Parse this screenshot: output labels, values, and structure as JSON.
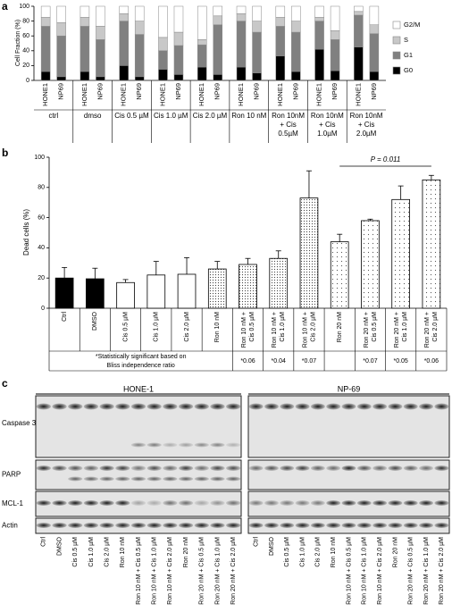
{
  "chart_data": [
    {
      "type": "stacked-bar",
      "panel": "a",
      "y_label": "Cell Fraction (%)",
      "categories": [
        "HONE1",
        "NP69",
        "HONE1",
        "NP69",
        "HONE1",
        "NP69",
        "HONE1",
        "NP69",
        "HONE1",
        "NP69",
        "HONE1",
        "NP69",
        "HONE1",
        "NP69",
        "HONE1",
        "NP69",
        "HONE1",
        "NP69"
      ],
      "groups": [
        [
          "ctrl"
        ],
        [
          "dmso"
        ],
        [
          "Cis 0.5 µM"
        ],
        [
          "Cis 1.0 µM"
        ],
        [
          "Cis 2.0 µM"
        ],
        [
          "Ron 10 nM"
        ],
        [
          "Ron 10nM",
          "+ Cis",
          "0.5µM"
        ],
        [
          "Ron 10nM",
          "+ Cis",
          "1.0µM"
        ],
        [
          "Ron 10nM",
          "+ Cis",
          "2.0µM"
        ]
      ],
      "series": [
        {
          "name": "G0",
          "color": "#000000",
          "values": [
            12,
            5,
            12,
            5,
            20,
            5,
            15,
            8,
            18,
            8,
            18,
            10,
            33,
            12,
            42,
            13,
            45,
            12
          ]
        },
        {
          "name": "G1",
          "color": "#808080",
          "values": [
            61,
            55,
            61,
            50,
            60,
            57,
            25,
            39,
            30,
            67,
            62,
            55,
            40,
            53,
            38,
            42,
            43,
            51
          ]
        },
        {
          "name": "S",
          "color": "#c8c8c8",
          "values": [
            12,
            18,
            12,
            18,
            10,
            18,
            18,
            18,
            7,
            12,
            10,
            15,
            12,
            15,
            5,
            12,
            5,
            12
          ]
        },
        {
          "name": "G2/M",
          "color": "#ffffff",
          "values": [
            15,
            22,
            15,
            27,
            10,
            20,
            42,
            35,
            45,
            13,
            10,
            20,
            15,
            20,
            15,
            33,
            7,
            25
          ]
        }
      ],
      "ylim": [
        0,
        100
      ],
      "yticks": [
        0,
        20,
        40,
        60,
        80,
        100
      ],
      "legend": "right"
    },
    {
      "type": "bar",
      "panel": "b",
      "y_label": "Dead cells (%)",
      "categories": [
        [
          "Ctrl"
        ],
        [
          "DMSO"
        ],
        [
          "Cis 0.5 µM"
        ],
        [
          "Cis 1.0 µM"
        ],
        [
          "Cis 2.0 µM"
        ],
        [
          "Ron 10 nM"
        ],
        [
          "Ron 10 nM +",
          "Cis 0.5 µM"
        ],
        [
          "Ron 10 nM +",
          "Cis 1.0 µM"
        ],
        [
          "Ron 10 nM +",
          "Cis 2.0 µM"
        ],
        [
          "Ron 20 nM"
        ],
        [
          "Ron 20 nM +",
          "Cis 0.5 µM"
        ],
        [
          "Ron 20 nM +",
          "Cis 1.0 µM"
        ],
        [
          "Ron 20 nM +",
          "Cis 2.0 µM"
        ]
      ],
      "values": [
        20,
        19.5,
        17,
        22,
        22.5,
        26,
        29,
        33,
        73,
        44,
        58,
        72,
        85
      ],
      "errors": [
        7,
        7,
        2,
        9,
        11,
        5,
        4,
        5,
        18,
        5,
        1,
        9,
        3
      ],
      "bar_styles": [
        "black",
        "black",
        "white",
        "white",
        "white",
        "dense-dots",
        "dense-dots",
        "dense-dots",
        "dense-dots",
        "sparse-dots",
        "sparse-dots",
        "sparse-dots",
        "sparse-dots"
      ],
      "note": [
        "*Statistically significant based on",
        "Bliss independence ratio"
      ],
      "bliss_labels": [
        null,
        null,
        null,
        null,
        null,
        null,
        "*0.06",
        "*0.04",
        "*0.07",
        null,
        "*0.07",
        "*0.05",
        "*0.06"
      ],
      "bracket_label": "P = 0.011",
      "ylim": [
        0,
        100
      ],
      "yticks": [
        0,
        20,
        40,
        60,
        80,
        100
      ]
    }
  ],
  "blot": {
    "panel": "c",
    "cell_lines": [
      "HONE-1",
      "NP-69"
    ],
    "proteins": [
      "Caspase 3",
      "PARP",
      "MCL-1",
      "Actin"
    ],
    "lanes": [
      "Ctrl",
      "DMSO",
      "Cis 0.5 µM",
      "Cis 1.0 µM",
      "Cis 2.0 µM",
      "Ron 10 nM",
      "Ron 10 nM + Cis 0.5 µM",
      "Ron 10 nM + Cis 1.0 µM",
      "Ron 10 nM + Cis 2.0 µM",
      "Ron 20 nM",
      "Ron 20 nM + Cis 0.5 µM",
      "Ron 20 nM + Cis 1.0 µM",
      "Ron 20 nM + Cis 2.0 µM"
    ]
  }
}
